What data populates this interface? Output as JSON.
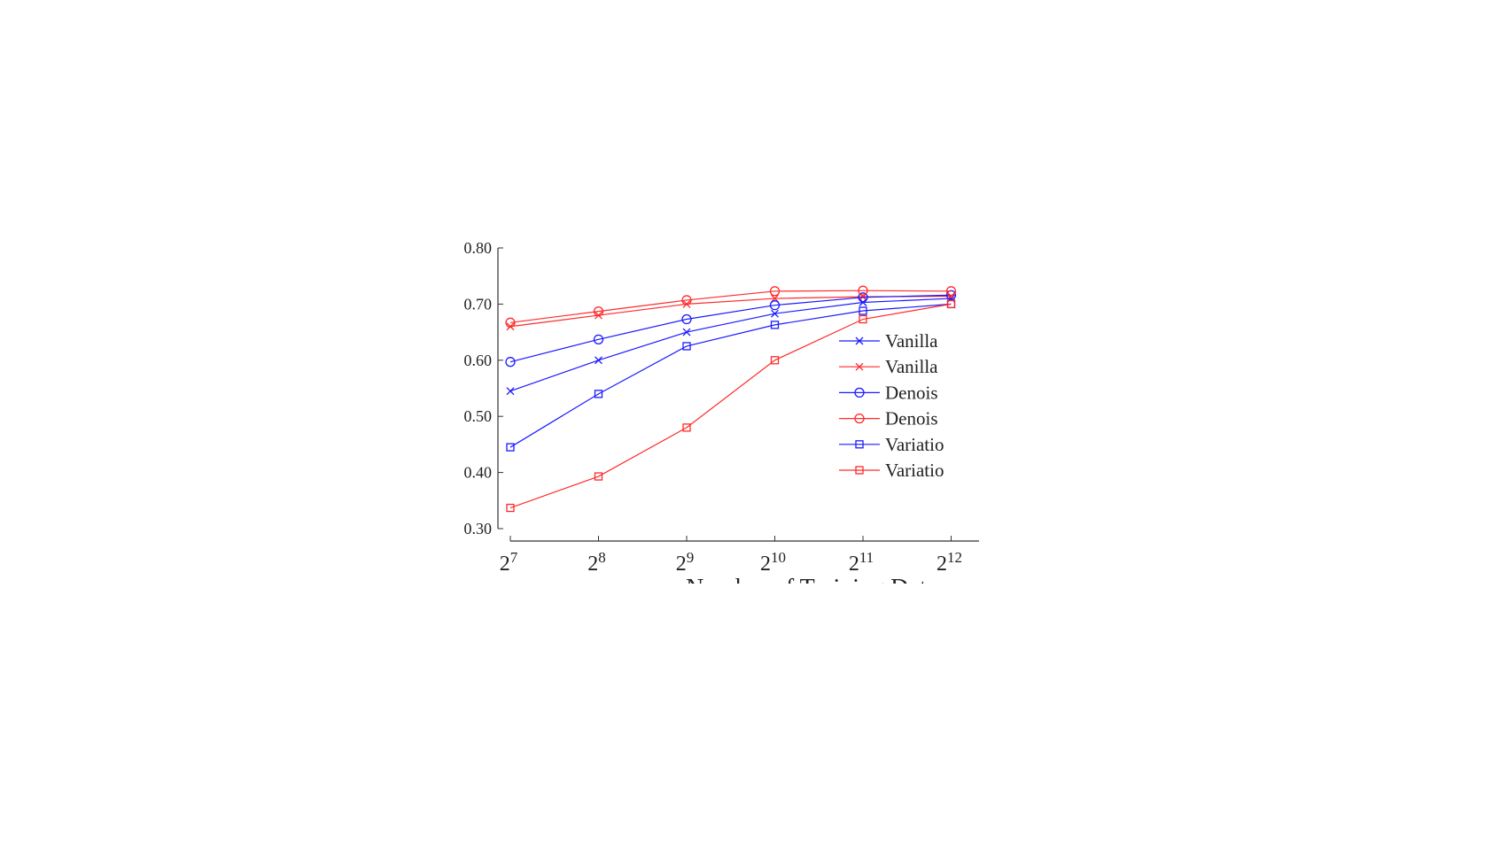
{
  "chart_data": {
    "type": "line",
    "x_ticks": [
      "2",
      "2",
      "2",
      "2",
      "2",
      "2"
    ],
    "x_tick_exponents": [
      "7",
      "8",
      "9",
      "10",
      "11",
      "12"
    ],
    "x_values": [
      7,
      8,
      9,
      10,
      11,
      12
    ],
    "xlabel": "Number of Training Data",
    "ylabel": "",
    "ylim": [
      0.3,
      0.8
    ],
    "y_ticks": [
      "0.30",
      "0.40",
      "0.50",
      "0.60",
      "0.70",
      "0.80"
    ],
    "grid": false,
    "legend_position": "center-right",
    "series": [
      {
        "name": "Vanilla",
        "color": "#1a1aff",
        "marker": "x",
        "values": [
          0.545,
          0.6,
          0.65,
          0.683,
          0.703,
          0.71
        ]
      },
      {
        "name": "Vanilla",
        "color": "#ff2a2a",
        "marker": "x",
        "values": [
          0.66,
          0.68,
          0.7,
          0.71,
          0.713,
          0.714
        ]
      },
      {
        "name": "Denois",
        "color": "#1a1aff",
        "marker": "circle",
        "values": [
          0.597,
          0.637,
          0.673,
          0.698,
          0.712,
          0.716
        ]
      },
      {
        "name": "Denois",
        "color": "#ff2a2a",
        "marker": "circle",
        "values": [
          0.667,
          0.687,
          0.707,
          0.723,
          0.724,
          0.723
        ]
      },
      {
        "name": "Variatio",
        "color": "#1a1aff",
        "marker": "square",
        "values": [
          0.445,
          0.54,
          0.625,
          0.663,
          0.688,
          0.7
        ]
      },
      {
        "name": "Variatio",
        "color": "#ff2a2a",
        "marker": "square",
        "values": [
          0.337,
          0.393,
          0.48,
          0.6,
          0.673,
          0.7
        ]
      }
    ]
  }
}
